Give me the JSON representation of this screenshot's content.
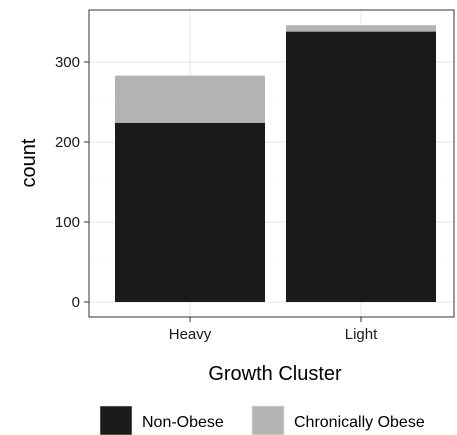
{
  "chart_data": {
    "type": "bar",
    "stacked": true,
    "categories": [
      "Heavy",
      "Light"
    ],
    "series": [
      {
        "name": "Non-Obese",
        "values": [
          224,
          338
        ],
        "color": "#1a1a1a"
      },
      {
        "name": "Chronically Obese",
        "values": [
          59,
          8
        ],
        "color": "#b3b3b3"
      }
    ],
    "xlabel": "Growth Cluster",
    "ylabel": "count",
    "ylim": [
      0,
      360
    ],
    "yticks": [
      0,
      100,
      200,
      300
    ],
    "grid": true,
    "legend_position": "bottom"
  }
}
